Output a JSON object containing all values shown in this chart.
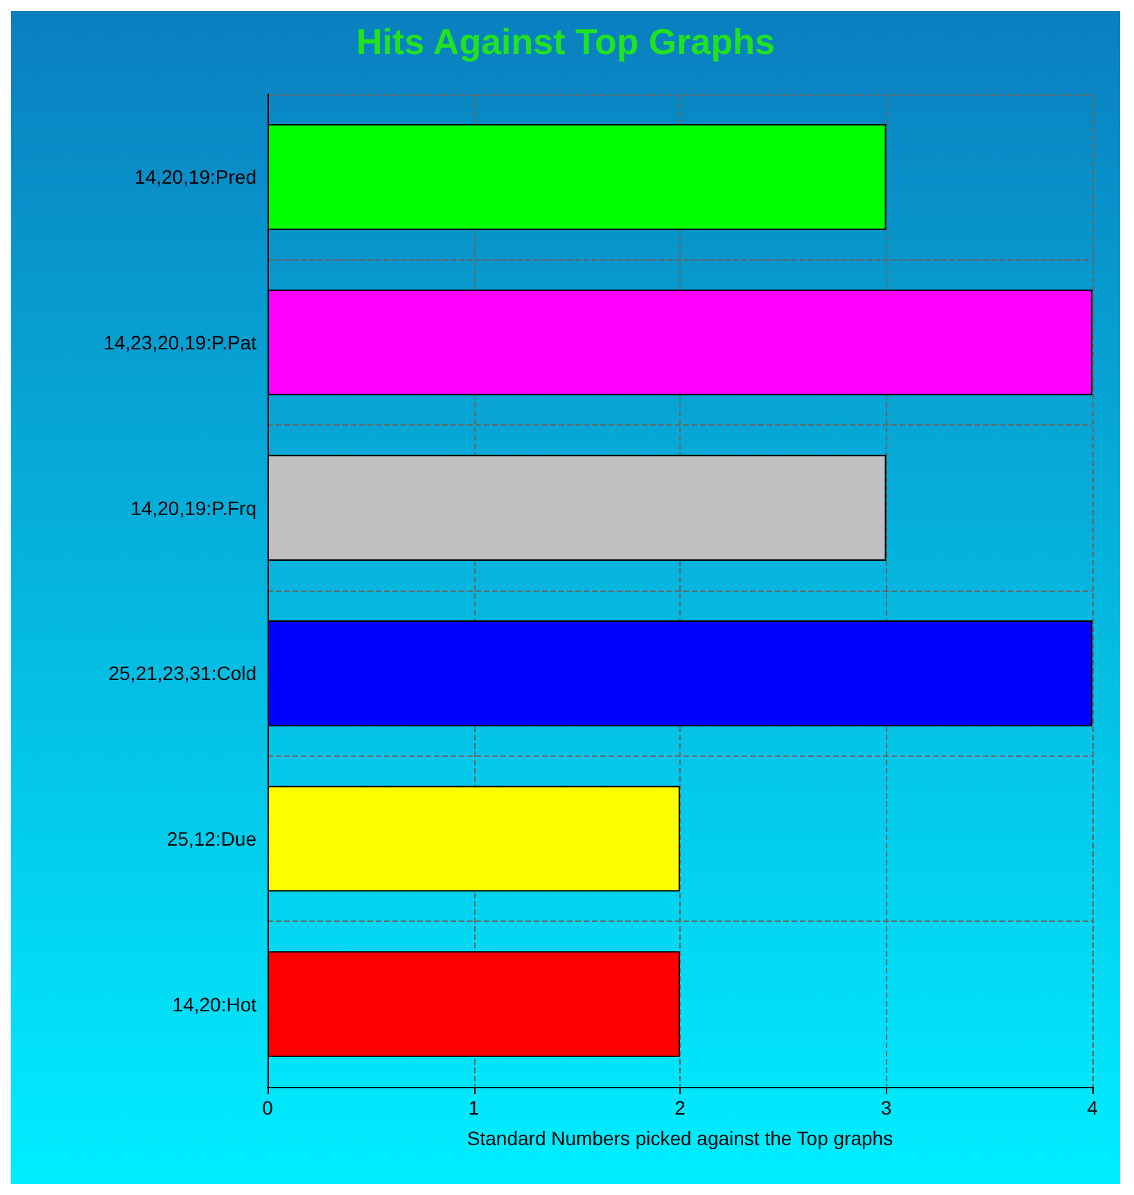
{
  "chart_data": {
    "type": "bar",
    "orientation": "horizontal",
    "title": "Hits Against Top Graphs",
    "xlabel": "Standard Numbers picked against the Top graphs",
    "categories": [
      "14,20,19:Pred",
      "14,23,20,19:P.Pat",
      "14,20,19:P.Frq",
      "25,21,23,31:Cold",
      "25,12:Due",
      "14,20:Hot"
    ],
    "values": [
      3,
      4,
      3,
      4,
      2,
      2
    ],
    "colors": [
      "#00ff00",
      "#ff00ff",
      "#c0c0c0",
      "#0000ff",
      "#ffff00",
      "#ff0000"
    ],
    "xlim": [
      0,
      4
    ],
    "xticks": [
      0,
      1,
      2,
      3,
      4
    ],
    "grid": true
  }
}
